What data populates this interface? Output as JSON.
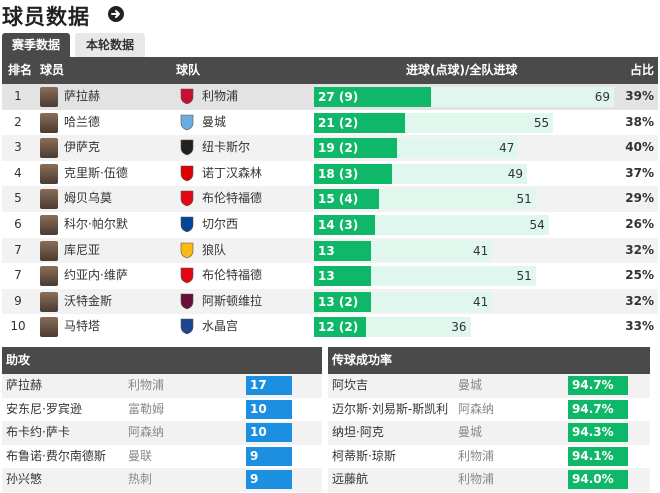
{
  "header": {
    "title": "球员数据"
  },
  "tabs": {
    "season": "赛季数据",
    "round": "本轮数据"
  },
  "table": {
    "columns": {
      "rank": "排名",
      "player": "球员",
      "team": "球队",
      "goals": "进球(点球)/全队进球",
      "share": "占比"
    },
    "rows": [
      {
        "rank": "1",
        "player": "萨拉赫",
        "team": "利物浦",
        "goals": "27 (9)",
        "goals_num": 27,
        "team_goals": 69,
        "team_goals_label": "69",
        "share": "39%",
        "crest": "liverpool-crest-icon",
        "crest_color": "#c8102e"
      },
      {
        "rank": "2",
        "player": "哈兰德",
        "team": "曼城",
        "goals": "21 (2)",
        "goals_num": 21,
        "team_goals": 55,
        "team_goals_label": "55",
        "share": "38%",
        "crest": "man-city-crest-icon",
        "crest_color": "#6cabdd"
      },
      {
        "rank": "3",
        "player": "伊萨克",
        "team": "纽卡斯尔",
        "goals": "19 (2)",
        "goals_num": 19,
        "team_goals": 47,
        "team_goals_label": "47",
        "share": "40%",
        "crest": "newcastle-crest-icon",
        "crest_color": "#241f20"
      },
      {
        "rank": "4",
        "player": "克里斯·伍德",
        "team": "诺丁汉森林",
        "goals": "18 (3)",
        "goals_num": 18,
        "team_goals": 49,
        "team_goals_label": "49",
        "share": "37%",
        "crest": "forest-crest-icon",
        "crest_color": "#dd0000"
      },
      {
        "rank": "5",
        "player": "姆贝乌莫",
        "team": "布伦特福德",
        "goals": "15 (4)",
        "goals_num": 15,
        "team_goals": 51,
        "team_goals_label": "51",
        "share": "29%",
        "crest": "brentford-crest-icon",
        "crest_color": "#e30613"
      },
      {
        "rank": "6",
        "player": "科尔·帕尔默",
        "team": "切尔西",
        "goals": "14 (3)",
        "goals_num": 14,
        "team_goals": 54,
        "team_goals_label": "54",
        "share": "26%",
        "crest": "chelsea-crest-icon",
        "crest_color": "#034694"
      },
      {
        "rank": "7",
        "player": "库尼亚",
        "team": "狼队",
        "goals": "13",
        "goals_num": 13,
        "team_goals": 41,
        "team_goals_label": "41",
        "share": "32%",
        "crest": "wolves-crest-icon",
        "crest_color": "#fdb913"
      },
      {
        "rank": "7",
        "player": "约亚内·维萨",
        "team": "布伦特福德",
        "goals": "13",
        "goals_num": 13,
        "team_goals": 51,
        "team_goals_label": "51",
        "share": "25%",
        "crest": "brentford-crest-icon",
        "crest_color": "#e30613"
      },
      {
        "rank": "9",
        "player": "沃特金斯",
        "team": "阿斯顿维拉",
        "goals": "13 (2)",
        "goals_num": 13,
        "team_goals": 41,
        "team_goals_label": "41",
        "share": "32%",
        "crest": "villa-crest-icon",
        "crest_color": "#670e36"
      },
      {
        "rank": "10",
        "player": "马特塔",
        "team": "水晶宫",
        "goals": "12 (2)",
        "goals_num": 12,
        "team_goals": 36,
        "team_goals_label": "36",
        "share": "33%",
        "crest": "palace-crest-icon",
        "crest_color": "#1b458f"
      }
    ]
  },
  "assists": {
    "title": "助攻",
    "rows": [
      {
        "player": "萨拉赫",
        "team": "利物浦",
        "value": "17"
      },
      {
        "player": "安东尼·罗宾逊",
        "team": "富勒姆",
        "value": "10"
      },
      {
        "player": "布卡约·萨卡",
        "team": "阿森纳",
        "value": "10"
      },
      {
        "player": "布鲁诺·费尔南德斯",
        "team": "曼联",
        "value": "9"
      },
      {
        "player": "孙兴慜",
        "team": "热刺",
        "value": "9"
      }
    ]
  },
  "passing": {
    "title": "传球成功率",
    "rows": [
      {
        "player": "阿坎吉",
        "team": "曼城",
        "value": "94.7%"
      },
      {
        "player": "迈尔斯·刘易斯-斯凯利",
        "team": "阿森纳",
        "value": "94.7%"
      },
      {
        "player": "纳坦·阿克",
        "team": "曼城",
        "value": "94.3%"
      },
      {
        "player": "柯蒂斯·琼斯",
        "team": "利物浦",
        "value": "94.1%"
      },
      {
        "player": "远藤航",
        "team": "利物浦",
        "value": "94.0%"
      }
    ]
  },
  "colors": {
    "bar_fill": "#0fb869",
    "bar_track": "#dff7ec",
    "header_bg": "#4a4a4a",
    "assist_bar": "#1c8fe0"
  }
}
